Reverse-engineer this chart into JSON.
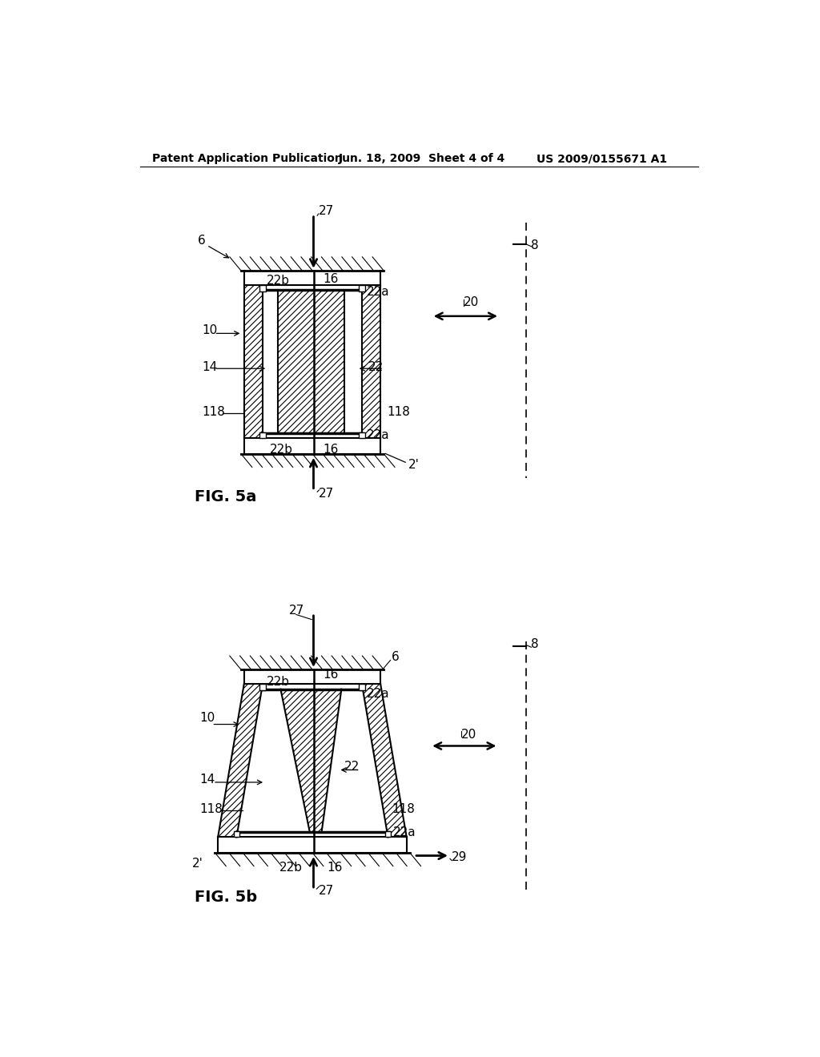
{
  "bg_color": "#ffffff",
  "header_left": "Patent Application Publication",
  "header_mid": "Jun. 18, 2009  Sheet 4 of 4",
  "header_right": "US 2009/0155671 A1",
  "fig5a_label": "FIG. 5a",
  "fig5b_label": "FIG. 5b",
  "line_color": "#000000"
}
